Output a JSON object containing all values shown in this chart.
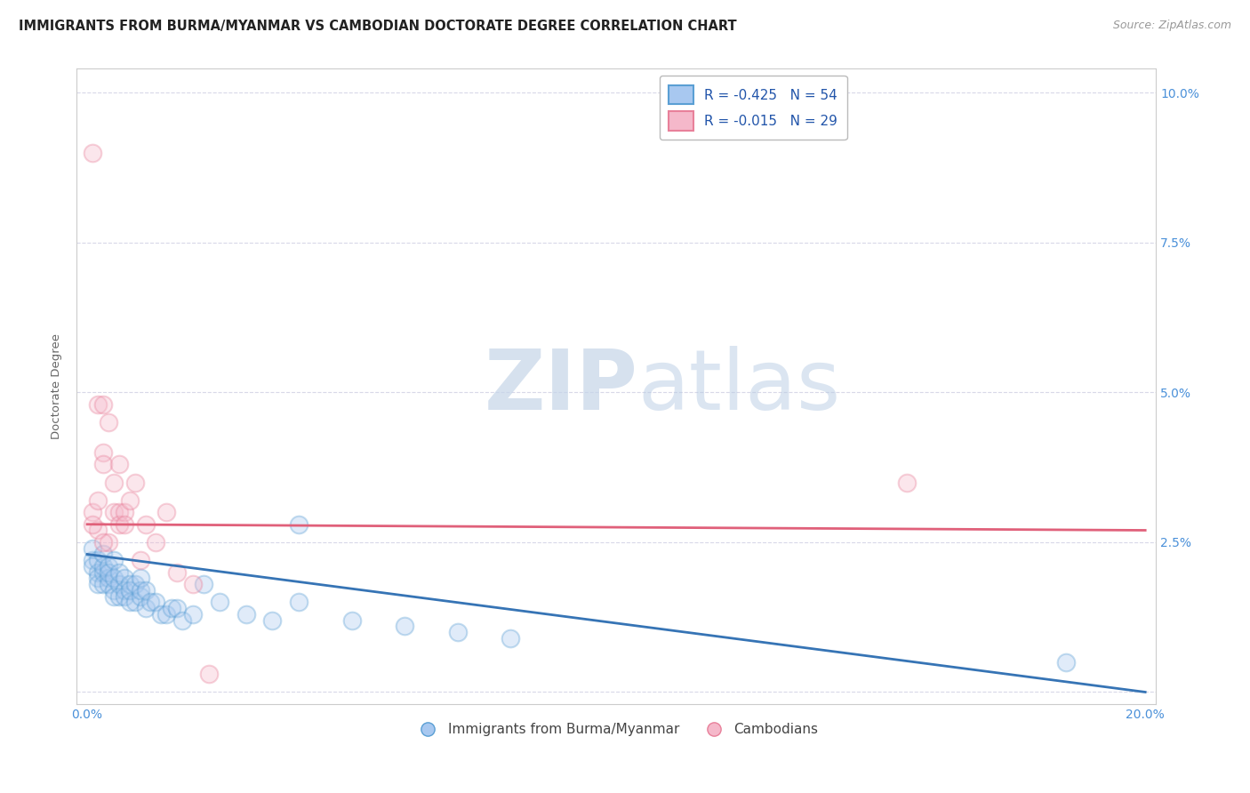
{
  "title": "IMMIGRANTS FROM BURMA/MYANMAR VS CAMBODIAN DOCTORATE DEGREE CORRELATION CHART",
  "source": "Source: ZipAtlas.com",
  "ylabel": "Doctorate Degree",
  "right_yticklabels": [
    "",
    "2.5%",
    "5.0%",
    "7.5%",
    "10.0%"
  ],
  "right_ytick_vals": [
    0.0,
    0.025,
    0.05,
    0.075,
    0.1
  ],
  "legend_blue_r": "R = -0.425",
  "legend_blue_n": "N = 54",
  "legend_pink_r": "R = -0.015",
  "legend_pink_n": "N = 29",
  "blue_color": "#a8c8f0",
  "blue_edge_color": "#5a9fd4",
  "blue_line_color": "#3674b5",
  "pink_color": "#f5b8ca",
  "pink_edge_color": "#e8809a",
  "pink_line_color": "#e0607a",
  "watermark_zip": "ZIP",
  "watermark_atlas": "atlas",
  "legend_label_blue": "Immigrants from Burma/Myanmar",
  "legend_label_pink": "Cambodians",
  "blue_scatter_x": [
    0.001,
    0.001,
    0.001,
    0.002,
    0.002,
    0.002,
    0.002,
    0.003,
    0.003,
    0.003,
    0.003,
    0.004,
    0.004,
    0.004,
    0.004,
    0.005,
    0.005,
    0.005,
    0.005,
    0.006,
    0.006,
    0.006,
    0.007,
    0.007,
    0.007,
    0.008,
    0.008,
    0.008,
    0.009,
    0.009,
    0.01,
    0.01,
    0.01,
    0.011,
    0.011,
    0.012,
    0.013,
    0.014,
    0.015,
    0.016,
    0.017,
    0.018,
    0.02,
    0.022,
    0.025,
    0.03,
    0.035,
    0.04,
    0.05,
    0.06,
    0.07,
    0.08,
    0.185,
    0.04
  ],
  "blue_scatter_y": [
    0.022,
    0.024,
    0.021,
    0.02,
    0.019,
    0.022,
    0.018,
    0.02,
    0.018,
    0.021,
    0.023,
    0.019,
    0.021,
    0.018,
    0.02,
    0.017,
    0.019,
    0.016,
    0.022,
    0.018,
    0.02,
    0.016,
    0.019,
    0.017,
    0.016,
    0.018,
    0.015,
    0.017,
    0.015,
    0.018,
    0.016,
    0.017,
    0.019,
    0.014,
    0.017,
    0.015,
    0.015,
    0.013,
    0.013,
    0.014,
    0.014,
    0.012,
    0.013,
    0.018,
    0.015,
    0.013,
    0.012,
    0.015,
    0.012,
    0.011,
    0.01,
    0.009,
    0.005,
    0.028
  ],
  "pink_scatter_x": [
    0.001,
    0.001,
    0.002,
    0.002,
    0.002,
    0.003,
    0.003,
    0.003,
    0.004,
    0.004,
    0.005,
    0.005,
    0.006,
    0.006,
    0.006,
    0.007,
    0.007,
    0.008,
    0.009,
    0.01,
    0.011,
    0.013,
    0.015,
    0.017,
    0.02,
    0.023,
    0.003,
    0.155,
    0.001
  ],
  "pink_scatter_y": [
    0.09,
    0.03,
    0.048,
    0.032,
    0.027,
    0.048,
    0.04,
    0.038,
    0.045,
    0.025,
    0.035,
    0.03,
    0.03,
    0.038,
    0.028,
    0.03,
    0.028,
    0.032,
    0.035,
    0.022,
    0.028,
    0.025,
    0.03,
    0.02,
    0.018,
    0.003,
    0.025,
    0.035,
    0.028
  ],
  "blue_trend_x": [
    0.0,
    0.2
  ],
  "blue_trend_y": [
    0.023,
    0.0
  ],
  "pink_trend_x": [
    0.0,
    0.2
  ],
  "pink_trend_y": [
    0.028,
    0.027
  ],
  "xlim": [
    -0.002,
    0.202
  ],
  "ylim": [
    -0.002,
    0.104
  ],
  "grid_color": "#d8d8e8",
  "background_color": "#ffffff",
  "title_fontsize": 10.5,
  "axis_label_fontsize": 9.5,
  "tick_fontsize": 10,
  "scatter_size": 200,
  "scatter_alpha": 0.35,
  "scatter_linewidth": 1.5
}
